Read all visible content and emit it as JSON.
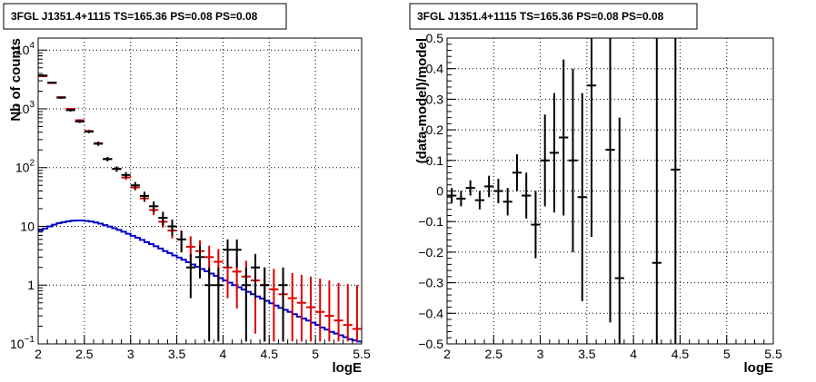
{
  "chart_data": [
    {
      "type": "histogram",
      "title": "3FGL J1351.4+1115 TS=165.36 PS=0.08 PS=0.08",
      "xlabel": "logE",
      "ylabel": "Nb of counts",
      "xlim": [
        2,
        5.5
      ],
      "ylim": [
        0.1,
        16000
      ],
      "yscale": "log",
      "grid": true,
      "x_ticks": [
        "2",
        "2.5",
        "3",
        "3.5",
        "4",
        "4.5",
        "5",
        "5.5"
      ],
      "y_ticks": [
        {
          "v": 0.1,
          "base": "10",
          "exp": "−1"
        },
        {
          "v": 1,
          "base": "1",
          "exp": ""
        },
        {
          "v": 10,
          "base": "10",
          "exp": ""
        },
        {
          "v": 100,
          "base": "10",
          "exp": "2"
        },
        {
          "v": 1000,
          "base": "10",
          "exp": "3"
        },
        {
          "v": 10000,
          "base": "10",
          "exp": "4"
        }
      ],
      "series": [
        {
          "color": "#000000",
          "style": "errorbar",
          "points": [
            {
              "x": 2.05,
              "y": 3700,
              "lo": 3580,
              "hi": 3820
            },
            {
              "x": 2.15,
              "y": 2800,
              "lo": 2700,
              "hi": 2900
            },
            {
              "x": 2.25,
              "y": 1550,
              "lo": 1480,
              "hi": 1620
            },
            {
              "x": 2.35,
              "y": 950,
              "lo": 900,
              "hi": 1000
            },
            {
              "x": 2.45,
              "y": 610,
              "lo": 575,
              "hi": 645
            },
            {
              "x": 2.55,
              "y": 410,
              "lo": 385,
              "hi": 435
            },
            {
              "x": 2.65,
              "y": 255,
              "lo": 235,
              "hi": 275
            },
            {
              "x": 2.75,
              "y": 140,
              "lo": 128,
              "hi": 152
            },
            {
              "x": 2.85,
              "y": 95,
              "lo": 85,
              "hi": 105
            },
            {
              "x": 2.95,
              "y": 75,
              "lo": 66,
              "hi": 84
            },
            {
              "x": 3.05,
              "y": 50,
              "lo": 43,
              "hi": 57
            },
            {
              "x": 3.15,
              "y": 33,
              "lo": 27,
              "hi": 39
            },
            {
              "x": 3.25,
              "y": 22,
              "lo": 17.5,
              "hi": 26.5
            },
            {
              "x": 3.35,
              "y": 14,
              "lo": 10.3,
              "hi": 17.7
            },
            {
              "x": 3.45,
              "y": 10,
              "lo": 6.9,
              "hi": 13.1
            },
            {
              "x": 3.55,
              "y": 6,
              "lo": 3.6,
              "hi": 8.4
            },
            {
              "x": 3.65,
              "y": 2,
              "lo": 0.6,
              "hi": 3.4
            },
            {
              "x": 3.75,
              "y": 3,
              "lo": 1.3,
              "hi": 4.7
            },
            {
              "x": 3.85,
              "y": 1,
              "lo": 0.11,
              "hi": 2
            },
            {
              "x": 3.95,
              "y": 1,
              "lo": 0.11,
              "hi": 2
            },
            {
              "x": 4.05,
              "y": 4,
              "lo": 2,
              "hi": 6
            },
            {
              "x": 4.15,
              "y": 4,
              "lo": 2,
              "hi": 6
            },
            {
              "x": 4.25,
              "y": 1,
              "lo": 0.11,
              "hi": 2
            },
            {
              "x": 4.35,
              "y": 2,
              "lo": 0.6,
              "hi": 3.4
            },
            {
              "x": 4.45,
              "y": 1,
              "lo": 0.11,
              "hi": 2
            },
            {
              "x": 4.65,
              "y": 1,
              "lo": 0.11,
              "hi": 2
            }
          ]
        },
        {
          "color": "#dd0000",
          "style": "errorbar",
          "points": [
            {
              "x": 2.05,
              "y": 3600,
              "lo": 3540,
              "hi": 3660
            },
            {
              "x": 2.15,
              "y": 2750,
              "lo": 2700,
              "hi": 2800
            },
            {
              "x": 2.25,
              "y": 1580,
              "lo": 1540,
              "hi": 1620
            },
            {
              "x": 2.35,
              "y": 1000,
              "lo": 970,
              "hi": 1030
            },
            {
              "x": 2.45,
              "y": 640,
              "lo": 615,
              "hi": 665
            },
            {
              "x": 2.55,
              "y": 420,
              "lo": 400,
              "hi": 440
            },
            {
              "x": 2.65,
              "y": 260,
              "lo": 245,
              "hi": 275
            },
            {
              "x": 2.75,
              "y": 140,
              "lo": 130,
              "hi": 150
            },
            {
              "x": 2.85,
              "y": 95,
              "lo": 87,
              "hi": 103
            },
            {
              "x": 2.95,
              "y": 68,
              "lo": 62,
              "hi": 74
            },
            {
              "x": 3.05,
              "y": 46,
              "lo": 41,
              "hi": 51
            },
            {
              "x": 3.15,
              "y": 30,
              "lo": 26,
              "hi": 34
            },
            {
              "x": 3.25,
              "y": 19,
              "lo": 15.5,
              "hi": 22.5
            },
            {
              "x": 3.35,
              "y": 12,
              "lo": 9.5,
              "hi": 14.5
            },
            {
              "x": 3.45,
              "y": 8.5,
              "lo": 6.2,
              "hi": 11
            },
            {
              "x": 3.55,
              "y": 6,
              "lo": 3.8,
              "hi": 8.5
            },
            {
              "x": 3.65,
              "y": 4.5,
              "lo": 2.6,
              "hi": 6.8
            },
            {
              "x": 3.75,
              "y": 3.8,
              "lo": 1.8,
              "hi": 5.8
            },
            {
              "x": 3.85,
              "y": 3,
              "lo": 1.3,
              "hi": 4.7
            },
            {
              "x": 3.95,
              "y": 2.5,
              "lo": 0.9,
              "hi": 4.1
            },
            {
              "x": 4.05,
              "y": 2,
              "lo": 0.6,
              "hi": 3.4
            },
            {
              "x": 4.15,
              "y": 1.7,
              "lo": 0.4,
              "hi": 3
            },
            {
              "x": 4.25,
              "y": 1.4,
              "lo": 0.25,
              "hi": 2.6
            },
            {
              "x": 4.35,
              "y": 1.2,
              "lo": 0.15,
              "hi": 2.3
            },
            {
              "x": 4.45,
              "y": 1,
              "lo": 0.11,
              "hi": 2
            },
            {
              "x": 4.55,
              "y": 0.85,
              "lo": 0.11,
              "hi": 1.9
            },
            {
              "x": 4.65,
              "y": 0.7,
              "lo": 0.11,
              "hi": 1.7
            },
            {
              "x": 4.75,
              "y": 0.6,
              "lo": 0.11,
              "hi": 1.6
            },
            {
              "x": 4.85,
              "y": 0.5,
              "lo": 0.11,
              "hi": 1.5
            },
            {
              "x": 4.95,
              "y": 0.42,
              "lo": 0.11,
              "hi": 1.4
            },
            {
              "x": 5.05,
              "y": 0.35,
              "lo": 0.11,
              "hi": 1.3
            },
            {
              "x": 5.15,
              "y": 0.3,
              "lo": 0.11,
              "hi": 1.2
            },
            {
              "x": 5.25,
              "y": 0.25,
              "lo": 0.11,
              "hi": 1.1
            },
            {
              "x": 5.35,
              "y": 0.21,
              "lo": 0.11,
              "hi": 1.05
            },
            {
              "x": 5.45,
              "y": 0.18,
              "lo": 0.11,
              "hi": 1
            }
          ]
        },
        {
          "color": "#0000cc",
          "style": "step",
          "bin_edges": [
            2.0,
            2.05,
            2.1,
            2.15,
            2.2,
            2.25,
            2.3,
            2.35,
            2.4,
            2.45,
            2.5,
            2.55,
            2.6,
            2.65,
            2.7,
            2.75,
            2.8,
            2.85,
            2.9,
            2.95,
            3.0,
            3.05,
            3.1,
            3.15,
            3.2,
            3.25,
            3.3,
            3.35,
            3.4,
            3.45,
            3.5,
            3.55,
            3.6,
            3.65,
            3.7,
            3.75,
            3.8,
            3.85,
            3.9,
            3.95,
            4.0,
            4.05,
            4.1,
            4.15,
            4.2,
            4.25,
            4.3,
            4.35,
            4.4,
            4.45,
            4.5,
            4.55,
            4.6,
            4.65,
            4.7,
            4.75,
            4.8,
            4.85,
            4.9,
            4.95,
            5.0,
            5.05,
            5.1,
            5.15,
            5.2,
            5.25,
            5.3,
            5.35,
            5.4,
            5.45,
            5.5
          ],
          "values": [
            8.5,
            9.2,
            10.0,
            10.7,
            11.3,
            11.8,
            12.2,
            12.5,
            12.6,
            12.6,
            12.4,
            12.1,
            11.6,
            11.1,
            10.5,
            9.9,
            9.3,
            8.7,
            8.1,
            7.5,
            6.9,
            6.4,
            5.9,
            5.4,
            5.0,
            4.6,
            4.2,
            3.8,
            3.5,
            3.2,
            2.95,
            2.7,
            2.45,
            2.25,
            2.05,
            1.88,
            1.72,
            1.57,
            1.44,
            1.32,
            1.2,
            1.1,
            1.0,
            0.92,
            0.84,
            0.77,
            0.7,
            0.64,
            0.59,
            0.54,
            0.49,
            0.45,
            0.41,
            0.38,
            0.35,
            0.32,
            0.29,
            0.27,
            0.25,
            0.23,
            0.21,
            0.19,
            0.175,
            0.16,
            0.15,
            0.14,
            0.13,
            0.12,
            0.115,
            0.11
          ]
        }
      ]
    },
    {
      "type": "scatter",
      "title": "3FGL J1351.4+1115 TS=165.36 PS=0.08 PS=0.08",
      "xlabel": "logE",
      "ylabel": "(data-model)/model",
      "xlim": [
        2,
        5.5
      ],
      "ylim": [
        -0.5,
        0.5
      ],
      "grid": true,
      "x_ticks": [
        "2",
        "2.5",
        "3",
        "3.5",
        "4",
        "4.5",
        "5",
        "5.5"
      ],
      "y_ticks": [
        {
          "v": -0.5,
          "label": "−0.5"
        },
        {
          "v": -0.4,
          "label": "−0.4"
        },
        {
          "v": -0.3,
          "label": "−0.3"
        },
        {
          "v": -0.2,
          "label": "−0.2"
        },
        {
          "v": -0.1,
          "label": "−0.1"
        },
        {
          "v": 0,
          "label": "0"
        },
        {
          "v": 0.1,
          "label": "0.1"
        },
        {
          "v": 0.2,
          "label": "0.2"
        },
        {
          "v": 0.3,
          "label": "0.3"
        },
        {
          "v": 0.4,
          "label": "0.4"
        },
        {
          "v": 0.5,
          "label": "0.5"
        }
      ],
      "series": [
        {
          "color": "#000000",
          "style": "errorbar",
          "points": [
            {
              "x": 2.05,
              "y": -0.015,
              "lo": -0.04,
              "hi": 0.01
            },
            {
              "x": 2.15,
              "y": -0.025,
              "lo": -0.05,
              "hi": 0.0
            },
            {
              "x": 2.25,
              "y": 0.01,
              "lo": -0.015,
              "hi": 0.035
            },
            {
              "x": 2.35,
              "y": -0.03,
              "lo": -0.06,
              "hi": 0.0
            },
            {
              "x": 2.45,
              "y": 0.015,
              "lo": -0.02,
              "hi": 0.05
            },
            {
              "x": 2.55,
              "y": 0.0,
              "lo": -0.04,
              "hi": 0.04
            },
            {
              "x": 2.65,
              "y": -0.035,
              "lo": -0.08,
              "hi": 0.01
            },
            {
              "x": 2.75,
              "y": 0.06,
              "lo": 0.0,
              "hi": 0.12
            },
            {
              "x": 2.85,
              "y": -0.015,
              "lo": -0.09,
              "hi": 0.06
            },
            {
              "x": 2.95,
              "y": -0.11,
              "lo": -0.22,
              "hi": 0.0
            },
            {
              "x": 3.05,
              "y": 0.1,
              "lo": -0.05,
              "hi": 0.25
            },
            {
              "x": 3.15,
              "y": 0.125,
              "lo": -0.07,
              "hi": 0.32
            },
            {
              "x": 3.25,
              "y": 0.175,
              "lo": -0.08,
              "hi": 0.43
            },
            {
              "x": 3.35,
              "y": 0.1,
              "lo": -0.2,
              "hi": 0.4
            },
            {
              "x": 3.45,
              "y": -0.02,
              "lo": -0.36,
              "hi": 0.32
            },
            {
              "x": 3.55,
              "y": 0.345,
              "lo": -0.15,
              "hi": 0.5
            },
            {
              "x": 3.75,
              "y": 0.135,
              "lo": -0.43,
              "hi": 0.5
            },
            {
              "x": 3.85,
              "y": -0.285,
              "lo": -0.5,
              "hi": 0.24
            },
            {
              "x": 4.25,
              "y": -0.235,
              "lo": -0.5,
              "hi": 0.5
            },
            {
              "x": 4.45,
              "y": 0.07,
              "lo": -0.5,
              "hi": 0.5
            }
          ]
        }
      ]
    }
  ]
}
